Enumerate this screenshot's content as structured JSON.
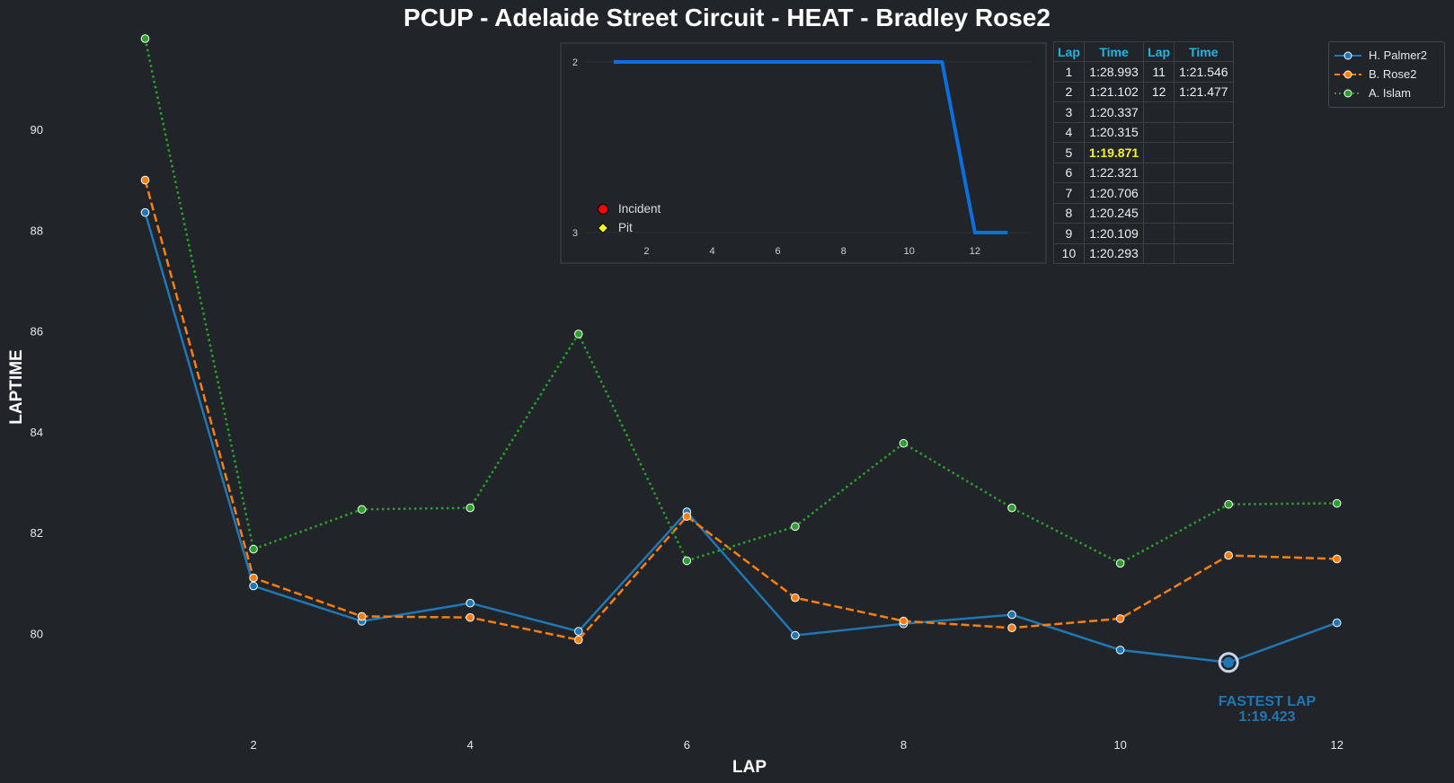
{
  "title": "PCUP - Adelaide Street Circuit - HEAT - Bradley Rose2",
  "colors": {
    "background": "#212429",
    "series1": "#1f77b4",
    "series2": "#ff7f0e",
    "series3": "#2ca02c",
    "inset_line": "#0a6fe0",
    "fastest_cell": "#f5f518"
  },
  "chart_data": [
    {
      "type": "line",
      "title": "PCUP - Adelaide Street Circuit - HEAT - Bradley Rose2",
      "xlabel": "LAP",
      "ylabel": "LAPTIME",
      "x": [
        1,
        2,
        3,
        4,
        5,
        6,
        7,
        8,
        9,
        10,
        11,
        12
      ],
      "xlim": [
        0.1,
        12.5
      ],
      "ylim": [
        78.1,
        91.8
      ],
      "xticks": [
        2,
        4,
        6,
        8,
        10,
        12
      ],
      "yticks": [
        80,
        82,
        84,
        86,
        88,
        90
      ],
      "grid": false,
      "legend_position": "top-right",
      "series": [
        {
          "name": "H. Palmer2",
          "style": "solid",
          "values": [
            88.35,
            80.94,
            80.24,
            80.6,
            80.04,
            82.41,
            79.96,
            80.19,
            80.37,
            79.67,
            79.423,
            80.21
          ]
        },
        {
          "name": "B. Rose2",
          "style": "dashed",
          "values": [
            88.993,
            81.102,
            80.337,
            80.315,
            79.871,
            82.321,
            80.706,
            80.245,
            80.109,
            80.293,
            81.546,
            81.477
          ]
        },
        {
          "name": "A. Islam",
          "style": "dotted",
          "values": [
            91.8,
            81.67,
            82.46,
            82.49,
            85.94,
            81.44,
            82.12,
            83.77,
            82.49,
            81.39,
            82.56,
            82.58
          ]
        }
      ],
      "annotation": {
        "label": "FASTEST LAP",
        "time": "1:19.423",
        "x": 11,
        "y": 79.423
      }
    },
    {
      "type": "line",
      "title": "",
      "xlabel": "",
      "ylabel": "",
      "x": [
        1,
        2,
        3,
        4,
        5,
        6,
        7,
        8,
        9,
        10,
        11,
        12,
        13
      ],
      "values": [
        2,
        2,
        2,
        2,
        2,
        2,
        2,
        2,
        2,
        2,
        2,
        3,
        3
      ],
      "xlim": [
        0.1,
        13.7
      ],
      "ylim": [
        3,
        2
      ],
      "xticks": [
        2,
        4,
        6,
        8,
        10,
        12
      ],
      "yticks": [
        2,
        3
      ],
      "legend": [
        {
          "label": "Incident",
          "marker": "circle",
          "color": "#ff0000"
        },
        {
          "label": "Pit",
          "marker": "diamond",
          "color": "#ffff00"
        }
      ]
    }
  ],
  "lap_table": {
    "headers": [
      "Lap",
      "Time",
      "Lap",
      "Time"
    ],
    "rows": [
      [
        "1",
        "1:28.993",
        "11",
        "1:21.546"
      ],
      [
        "2",
        "1:21.102",
        "12",
        "1:21.477"
      ],
      [
        "3",
        "1:20.337",
        "",
        ""
      ],
      [
        "4",
        "1:20.315",
        "",
        ""
      ],
      [
        "5",
        "1:19.871",
        "",
        ""
      ],
      [
        "6",
        "1:22.321",
        "",
        ""
      ],
      [
        "7",
        "1:20.706",
        "",
        ""
      ],
      [
        "8",
        "1:20.245",
        "",
        ""
      ],
      [
        "9",
        "1:20.109",
        "",
        ""
      ],
      [
        "10",
        "1:20.293",
        "",
        ""
      ]
    ],
    "fastest_row": 4
  }
}
